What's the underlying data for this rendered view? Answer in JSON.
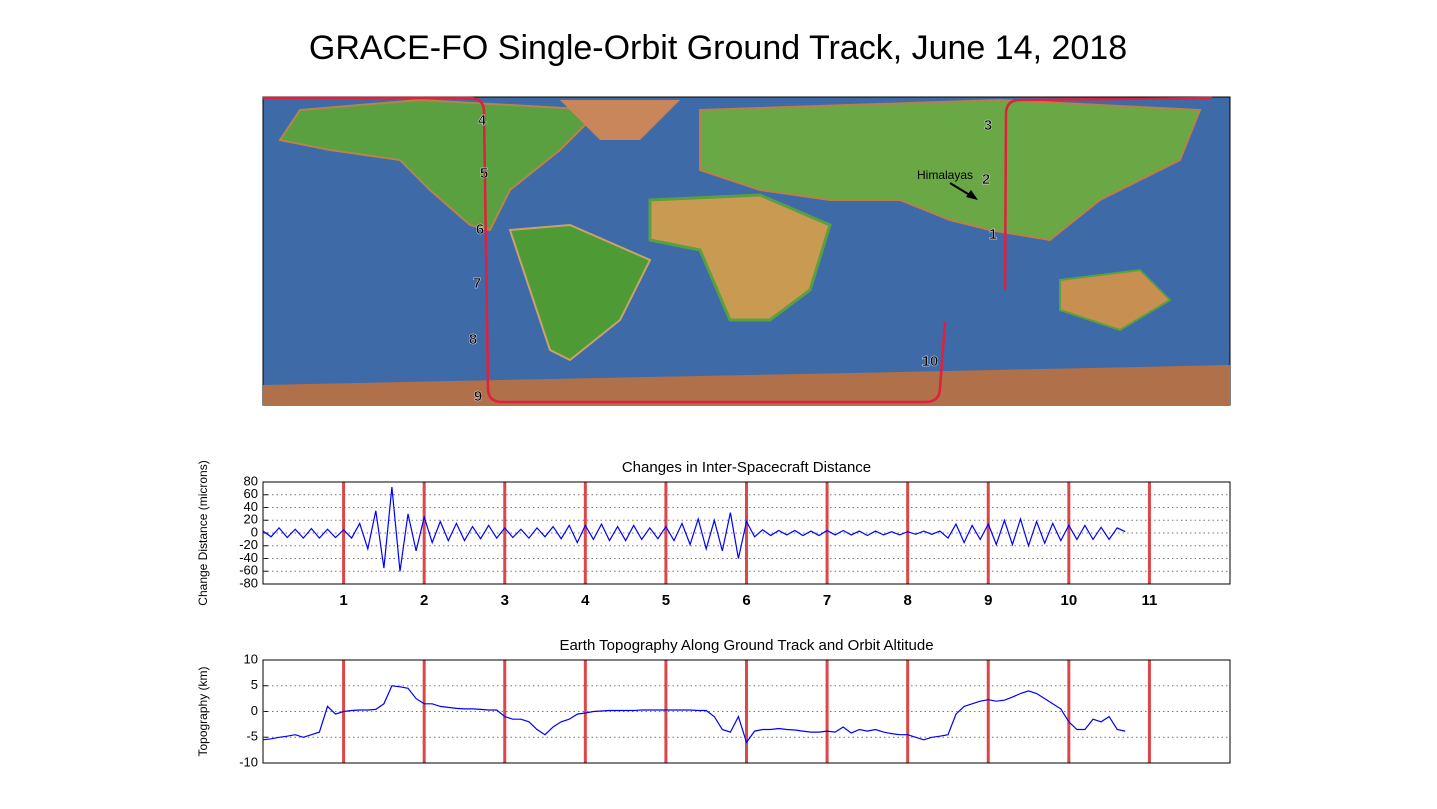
{
  "title": "GRACE-FO Single-Orbit Ground Track, June 14, 2018",
  "map": {
    "markers": [
      "1",
      "2",
      "3",
      "4",
      "5",
      "6",
      "7",
      "8",
      "9",
      "10"
    ],
    "annotation": "Himalayas",
    "marker_color": "#e8001c"
  },
  "chart_data": [
    {
      "type": "line",
      "title": "Changes in Inter-Spacecraft Distance",
      "ylabel": "Change Distance (microns)",
      "xlim": [
        0,
        12
      ],
      "ylim": [
        -80,
        80
      ],
      "yticks": [
        -80,
        -60,
        -40,
        -20,
        0,
        20,
        40,
        60,
        80
      ],
      "xticks": [
        1,
        2,
        3,
        4,
        5,
        6,
        7,
        8,
        9,
        10,
        11
      ],
      "xtick_color": "#e8001c",
      "vline_color": "#d62728",
      "grid": true,
      "x": [
        0,
        0.1,
        0.2,
        0.3,
        0.4,
        0.5,
        0.6,
        0.7,
        0.8,
        0.9,
        1,
        1.1,
        1.2,
        1.3,
        1.4,
        1.5,
        1.6,
        1.7,
        1.8,
        1.9,
        2,
        2.1,
        2.2,
        2.3,
        2.4,
        2.5,
        2.6,
        2.7,
        2.8,
        2.9,
        3,
        3.1,
        3.2,
        3.3,
        3.4,
        3.5,
        3.6,
        3.7,
        3.8,
        3.9,
        4,
        4.1,
        4.2,
        4.3,
        4.4,
        4.5,
        4.6,
        4.7,
        4.8,
        4.9,
        5,
        5.1,
        5.2,
        5.3,
        5.4,
        5.5,
        5.6,
        5.7,
        5.8,
        5.9,
        6,
        6.1,
        6.2,
        6.3,
        6.4,
        6.5,
        6.6,
        6.7,
        6.8,
        6.9,
        7,
        7.1,
        7.2,
        7.3,
        7.4,
        7.5,
        7.6,
        7.7,
        7.8,
        7.9,
        8,
        8.1,
        8.2,
        8.3,
        8.4,
        8.5,
        8.6,
        8.7,
        8.8,
        8.9,
        9,
        9.1,
        9.2,
        9.3,
        9.4,
        9.5,
        9.6,
        9.7,
        9.8,
        9.9,
        10,
        10.1,
        10.2,
        10.3,
        10.4,
        10.5,
        10.6,
        10.7
      ],
      "series": [
        {
          "color": "#0000ff",
          "values": [
            3,
            -6,
            8,
            -7,
            6,
            -8,
            7,
            -8,
            6,
            -7,
            5,
            -8,
            15,
            -25,
            35,
            -55,
            72,
            -60,
            30,
            -28,
            25,
            -15,
            18,
            -12,
            15,
            -12,
            10,
            -9,
            12,
            -8,
            8,
            -7,
            6,
            -8,
            8,
            -6,
            10,
            -9,
            12,
            -15,
            12,
            -10,
            14,
            -12,
            10,
            -12,
            12,
            -10,
            8,
            -9,
            10,
            -12,
            15,
            -18,
            22,
            -25,
            20,
            -28,
            32,
            -40,
            18,
            -6,
            5,
            -4,
            4,
            -3,
            4,
            -4,
            3,
            -4,
            4,
            -3,
            4,
            -3,
            3,
            -4,
            3,
            -3,
            2,
            -3,
            2,
            -2,
            3,
            -2,
            3,
            -8,
            14,
            -15,
            12,
            -10,
            14,
            -18,
            20,
            -18,
            22,
            -20,
            18,
            -16,
            15,
            -12,
            12,
            -10,
            12,
            -10,
            9,
            -10,
            8,
            2
          ]
        }
      ]
    },
    {
      "type": "line",
      "title": "Earth Topography Along Ground Track and Orbit Altitude",
      "ylabel": "Topography (km)",
      "xlim": [
        0,
        12
      ],
      "ylim": [
        -10,
        10
      ],
      "yticks": [
        -10,
        -5,
        0,
        5,
        10
      ],
      "xticks": [
        1,
        2,
        3,
        4,
        5,
        6,
        7,
        8,
        9,
        10,
        11
      ],
      "vline_color": "#d62728",
      "grid": true,
      "x": [
        0,
        0.1,
        0.2,
        0.3,
        0.4,
        0.5,
        0.6,
        0.7,
        0.8,
        0.9,
        1,
        1.1,
        1.2,
        1.3,
        1.4,
        1.5,
        1.6,
        1.7,
        1.8,
        1.9,
        2,
        2.1,
        2.2,
        2.3,
        2.4,
        2.5,
        2.6,
        2.7,
        2.8,
        2.9,
        3,
        3.1,
        3.2,
        3.3,
        3.4,
        3.5,
        3.6,
        3.7,
        3.8,
        3.9,
        4,
        4.1,
        4.2,
        4.3,
        4.4,
        4.5,
        4.6,
        4.7,
        4.8,
        4.9,
        5,
        5.1,
        5.2,
        5.3,
        5.4,
        5.5,
        5.6,
        5.7,
        5.8,
        5.9,
        6,
        6.1,
        6.2,
        6.3,
        6.4,
        6.5,
        6.6,
        6.7,
        6.8,
        6.9,
        7,
        7.1,
        7.2,
        7.3,
        7.4,
        7.5,
        7.6,
        7.7,
        7.8,
        7.9,
        8,
        8.1,
        8.2,
        8.3,
        8.4,
        8.5,
        8.6,
        8.7,
        8.8,
        8.9,
        9,
        9.1,
        9.2,
        9.3,
        9.4,
        9.5,
        9.6,
        9.7,
        9.8,
        9.9,
        10,
        10.1,
        10.2,
        10.3,
        10.4,
        10.5,
        10.6,
        10.7
      ],
      "series": [
        {
          "color": "#0000ff",
          "values": [
            -5.5,
            -5.3,
            -5,
            -4.8,
            -4.5,
            -5,
            -4.5,
            -4,
            1,
            -0.5,
            0,
            0.2,
            0.3,
            0.3,
            0.4,
            1.5,
            5,
            4.8,
            4.5,
            2.5,
            1.5,
            1.5,
            1,
            0.8,
            0.6,
            0.5,
            0.5,
            0.4,
            0.3,
            0.3,
            -1,
            -1.5,
            -1.5,
            -2,
            -3.5,
            -4.5,
            -3,
            -2,
            -1.5,
            -0.5,
            -0.3,
            0,
            0.1,
            0.2,
            0.2,
            0.2,
            0.2,
            0.3,
            0.3,
            0.3,
            0.3,
            0.3,
            0.3,
            0.3,
            0.2,
            0.2,
            -1,
            -3.5,
            -4,
            -1,
            -6,
            -3.8,
            -3.5,
            -3.5,
            -3.3,
            -3.5,
            -3.6,
            -3.8,
            -4,
            -4,
            -3.8,
            -4,
            -3,
            -4.2,
            -3.5,
            -3.8,
            -3.5,
            -4,
            -4.3,
            -4.5,
            -4.5,
            -5,
            -5.5,
            -5,
            -4.8,
            -4.5,
            -0.5,
            1,
            1.5,
            2,
            2.3,
            2,
            2.2,
            2.8,
            3.5,
            4,
            3.5,
            2.5,
            1.5,
            0.5,
            -2,
            -3.5,
            -3.5,
            -1.5,
            -2,
            -1,
            -3.5,
            -3.8
          ]
        }
      ]
    }
  ]
}
